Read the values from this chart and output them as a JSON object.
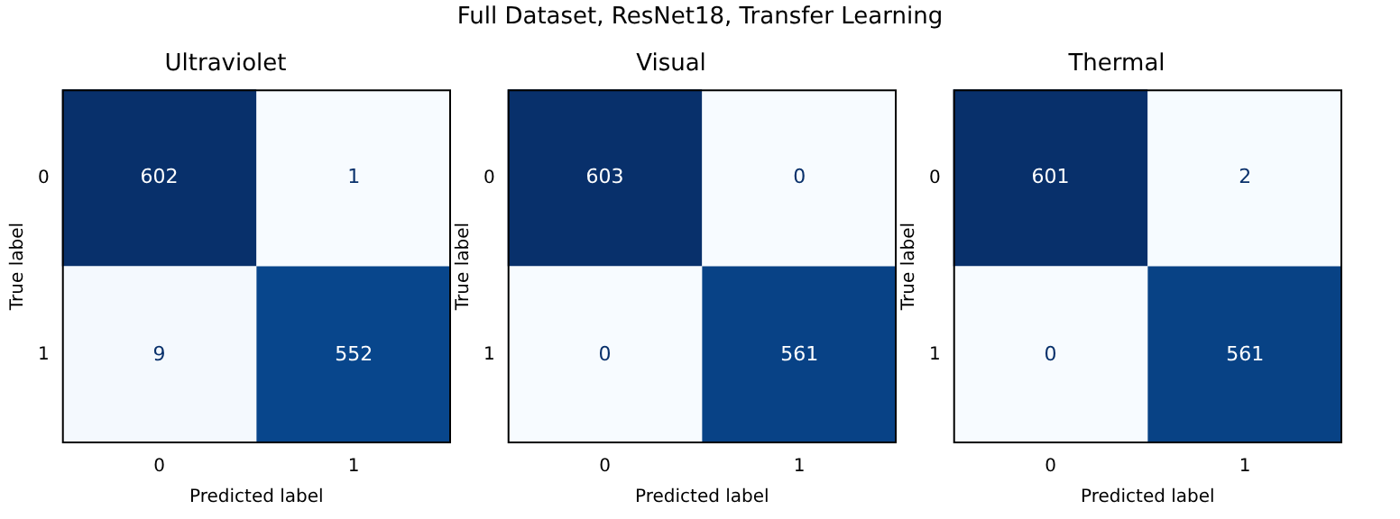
{
  "chart_data": [
    {
      "type": "other",
      "title": "Full Dataset, ResNet18, Transfer Learning"
    },
    {
      "type": "heatmap",
      "title": "Ultraviolet",
      "xlabel": "Predicted label",
      "ylabel": "True label",
      "categories": [
        "0",
        "1"
      ],
      "y_categories": [
        "0",
        "1"
      ],
      "cells": [
        [
          602,
          1
        ],
        [
          9,
          552
        ]
      ],
      "data_labels": true,
      "grid": false
    },
    {
      "type": "heatmap",
      "title": "Visual",
      "xlabel": "Predicted label",
      "ylabel": "True label",
      "categories": [
        "0",
        "1"
      ],
      "y_categories": [
        "0",
        "1"
      ],
      "cells": [
        [
          603,
          0
        ],
        [
          0,
          561
        ]
      ],
      "data_labels": true,
      "grid": false
    },
    {
      "type": "heatmap",
      "title": "Thermal",
      "xlabel": "Predicted label",
      "ylabel": "True label",
      "categories": [
        "0",
        "1"
      ],
      "y_categories": [
        "0",
        "1"
      ],
      "cells": [
        [
          601,
          2
        ],
        [
          0,
          561
        ]
      ],
      "data_labels": true,
      "grid": false
    }
  ]
}
